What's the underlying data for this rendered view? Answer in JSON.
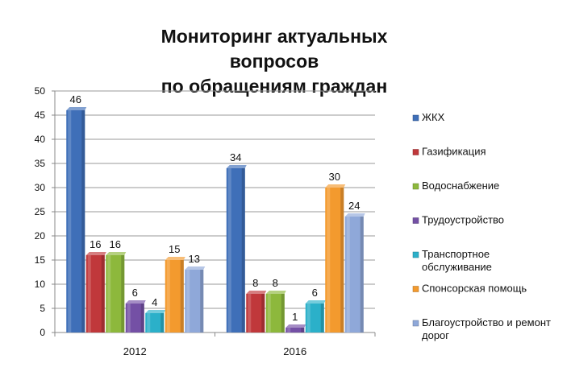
{
  "chart_data": {
    "type": "bar",
    "title_lines": [
      "Мониторинг актуальных вопросов",
      "по обращениям граждан"
    ],
    "categories": [
      "2012",
      "2016"
    ],
    "ylim": [
      0,
      50
    ],
    "yticks": [
      0,
      5,
      10,
      15,
      20,
      25,
      30,
      35,
      40,
      45,
      50
    ],
    "grid": true,
    "legend_position": "right",
    "series": [
      {
        "name": "ЖКХ",
        "legend_lines": [
          "ЖКХ"
        ],
        "color": "#3f6fb8",
        "values": [
          46,
          34
        ]
      },
      {
        "name": "Газификация",
        "legend_lines": [
          "Газификация"
        ],
        "color": "#c0383b",
        "values": [
          16,
          8
        ]
      },
      {
        "name": "Водоснабжение",
        "legend_lines": [
          "Водоснабжение"
        ],
        "color": "#8db83c",
        "values": [
          16,
          8
        ]
      },
      {
        "name": "Трудоустройство",
        "legend_lines": [
          "Трудоустройство"
        ],
        "color": "#7450a5",
        "values": [
          6,
          1
        ]
      },
      {
        "name": "Транспортное обслуживание",
        "legend_lines": [
          "Транспортное",
          "обслуживание"
        ],
        "color": "#2bb0c9",
        "values": [
          4,
          6
        ]
      },
      {
        "name": "Спонсорская помощь",
        "legend_lines": [
          "Спонсорская помощь"
        ],
        "color": "#f39a2e",
        "values": [
          15,
          30
        ]
      },
      {
        "name": "Благоустройство и ремонт дорог",
        "legend_lines": [
          "Благоустройство и ремонт",
          "дорог"
        ],
        "color": "#8fa8d9",
        "values": [
          13,
          24
        ]
      }
    ]
  }
}
